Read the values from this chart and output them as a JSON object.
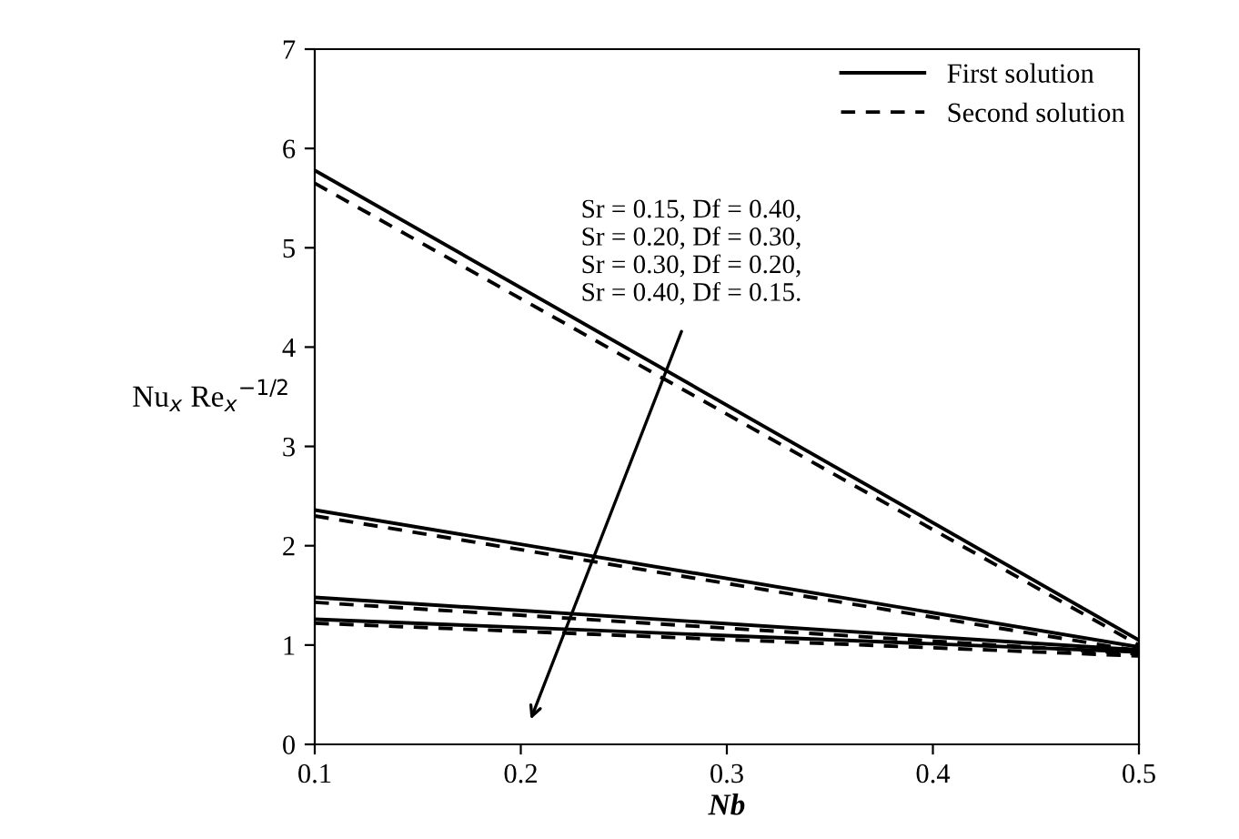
{
  "chart_data": {
    "type": "line",
    "xlabel": "Nb",
    "ylabel": "Nu$_{x}$ Re$_{x}$$^{−1/2}$",
    "x": [
      0.1,
      0.5
    ],
    "series": [
      {
        "name": "First solution",
        "color": "#000000",
        "line_style": "solid",
        "values": [
          5.78,
          1.05
        ]
      },
      {
        "color": "#000000",
        "line_style": "solid",
        "values": [
          2.36,
          0.98
        ]
      },
      {
        "color": "#000000",
        "line_style": "solid",
        "values": [
          1.48,
          0.95
        ]
      },
      {
        "color": "#000000",
        "line_style": "solid",
        "values": [
          1.26,
          0.93
        ]
      },
      {
        "name": "Second solution",
        "color": "#000000",
        "line_style": "dashed",
        "values": [
          5.65,
          1.0
        ]
      },
      {
        "color": "#000000",
        "line_style": "dashed",
        "values": [
          2.3,
          0.94
        ]
      },
      {
        "color": "#000000",
        "line_style": "dashed",
        "values": [
          1.43,
          0.91
        ]
      },
      {
        "color": "#000000",
        "line_style": "dashed",
        "values": [
          1.22,
          0.89
        ]
      }
    ],
    "xlim": [
      0.1,
      0.5
    ],
    "xticks": [
      0.1,
      0.2,
      0.3,
      0.4,
      0.5
    ],
    "ylim": [
      0,
      7
    ],
    "yticks": [
      0,
      1,
      2,
      3,
      4,
      5,
      6,
      7
    ],
    "annotations": [
      "Sr = 0.15, Df = 0.40,\nSr = 0.20, Df = 0.30,\nSr = 0.30, Df = 0.20,\nSr = 0.40, Df = 0.15."
    ],
    "grid": false,
    "legend": "top right",
    "marker": "none"
  }
}
